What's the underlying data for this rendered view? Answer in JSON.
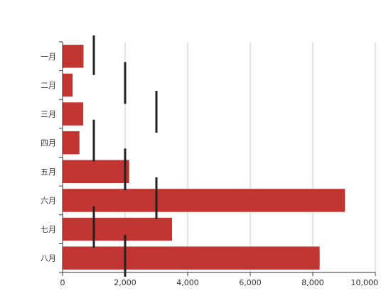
{
  "chart_data": {
    "type": "bar",
    "orientation": "horizontal",
    "categories": [
      "一月",
      "二月",
      "三月",
      "四月",
      "五月",
      "六月",
      "七月",
      "八月"
    ],
    "series": [
      {
        "values": [
          670,
          320,
          660,
          540,
          2130,
          9030,
          3500,
          8220
        ]
      },
      {
        "type": "marker",
        "values": [
          1000,
          2000,
          3000,
          1000,
          2000,
          3000,
          1000,
          2000
        ]
      }
    ],
    "x_ticks": [
      "0",
      "2,000",
      "4,000",
      "6,000",
      "8,000",
      "10,000"
    ],
    "xlim": [
      0,
      10000
    ],
    "grid": "vertical",
    "colors": {
      "bar": "#c23531",
      "marker": "#222222",
      "grid": "#cccccc",
      "axis": "#333333"
    }
  }
}
